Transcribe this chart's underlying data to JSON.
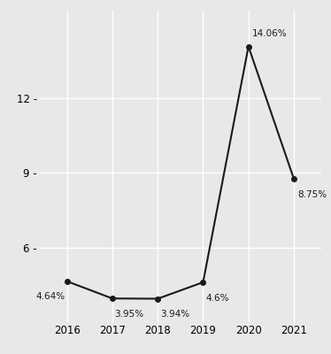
{
  "x": [
    2016,
    2017,
    2018,
    2019,
    2020,
    2021
  ],
  "y": [
    4.64,
    3.95,
    3.94,
    4.6,
    14.06,
    8.75
  ],
  "labels": [
    "4.64%",
    "3.95%",
    "3.94%",
    "4.6%",
    "14.06%",
    "8.75%"
  ],
  "label_offsets_x": [
    -0.05,
    0.05,
    0.05,
    0.05,
    0.08,
    0.08
  ],
  "label_offsets_y": [
    -0.45,
    -0.45,
    -0.45,
    -0.45,
    0.35,
    -0.45
  ],
  "line_color": "#1a1a1a",
  "marker_color": "#1a1a1a",
  "bg_color": "#e8e8e8",
  "grid_color": "#ffffff",
  "yticks": [
    6,
    9,
    12
  ],
  "ytick_labels": [
    "6 -",
    "9 -",
    "12 -"
  ],
  "ylim": [
    3.0,
    15.5
  ],
  "xlim": [
    2015.4,
    2021.6
  ],
  "label_fontsize": 7.5,
  "tick_fontsize": 8.5
}
